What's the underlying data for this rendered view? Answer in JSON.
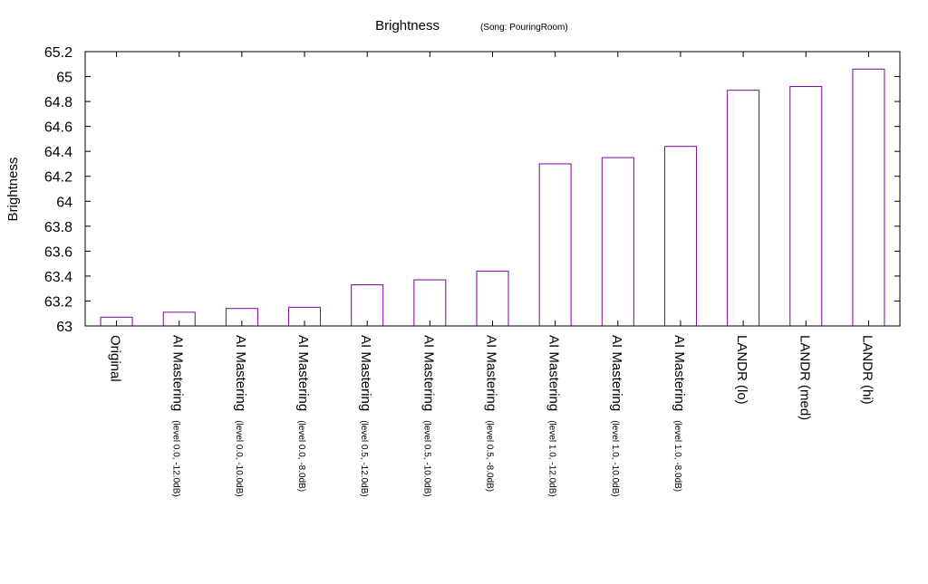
{
  "chart_data": {
    "type": "bar",
    "title": "Brightness",
    "subtitle": "(Song: PouringRoom)",
    "ylabel": "Brightness",
    "xlabel": "",
    "ylim": [
      63,
      65.2
    ],
    "yticks": [
      63,
      63.2,
      63.4,
      63.6,
      63.8,
      64,
      64.2,
      64.4,
      64.6,
      64.8,
      65,
      65.2
    ],
    "grid": false,
    "legend": "none",
    "bar_color": "#8000a0",
    "categories": [
      {
        "main": "Original",
        "sub": ""
      },
      {
        "main": "AI Mastering",
        "sub": "(level 0.0, -12.0dB)"
      },
      {
        "main": "AI Mastering",
        "sub": "(level 0.0, -10.0dB)"
      },
      {
        "main": "AI Mastering",
        "sub": "(level 0.0, -8.0dB)"
      },
      {
        "main": "AI Mastering",
        "sub": "(level 0.5, -12.0dB)"
      },
      {
        "main": "AI Mastering",
        "sub": "(level 0.5, -10.0dB)"
      },
      {
        "main": "AI Mastering",
        "sub": "(level 0.5, -8.0dB)"
      },
      {
        "main": "AI Mastering",
        "sub": "(level 1.0, -12.0dB)"
      },
      {
        "main": "AI Mastering",
        "sub": "(level 1.0, -10.0dB)"
      },
      {
        "main": "AI Mastering",
        "sub": "(level 1.0, -8.0dB)"
      },
      {
        "main": "LANDR (lo)",
        "sub": ""
      },
      {
        "main": "LANDR (med)",
        "sub": ""
      },
      {
        "main": "LANDR (hi)",
        "sub": ""
      }
    ],
    "values": [
      63.07,
      63.11,
      63.14,
      63.15,
      63.33,
      63.37,
      63.44,
      64.3,
      64.35,
      64.44,
      64.89,
      64.92,
      65.06
    ]
  }
}
